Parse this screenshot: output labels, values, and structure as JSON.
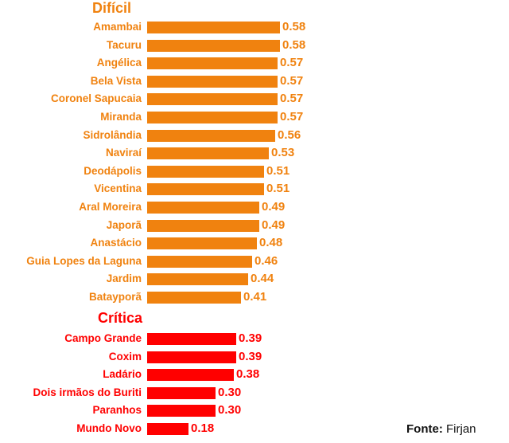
{
  "colors": {
    "dificil": "#f0820f",
    "critica": "#ff0000",
    "text": "#111111"
  },
  "source": {
    "label": "Fonte:",
    "value": "Firjan"
  },
  "chart_data": {
    "type": "bar",
    "orientation": "horizontal",
    "title": "",
    "groups": [
      {
        "name": "Difícil",
        "color": "#f0820f",
        "categories": [
          "Amambai",
          "Tacuru",
          "Angélica",
          "Bela Vista",
          "Coronel Sapucaia",
          "Miranda",
          "Sidrolândia",
          "Naviraí",
          "Deodápolis",
          "Vicentina",
          "Aral Moreira",
          "Japorã",
          "Anastácio",
          "Guia Lopes da Laguna",
          "Jardim",
          "Batayporã"
        ],
        "values": [
          0.58,
          0.58,
          0.57,
          0.57,
          0.57,
          0.57,
          0.56,
          0.53,
          0.51,
          0.51,
          0.49,
          0.49,
          0.48,
          0.46,
          0.44,
          0.41
        ],
        "labels": [
          "0.58",
          "0.58",
          "0.57",
          "0.57",
          "0.57",
          "0.57",
          "0.56",
          "0.53",
          "0.51",
          "0.51",
          "0.49",
          "0.49",
          "0.48",
          "0.46",
          "0.44",
          "0.41"
        ]
      },
      {
        "name": "Crítica",
        "color": "#ff0000",
        "categories": [
          "Campo Grande",
          "Coxim",
          "Ladário",
          "Dois irmãos do Buriti",
          "Paranhos",
          "Mundo Novo"
        ],
        "values": [
          0.39,
          0.39,
          0.38,
          0.3,
          0.3,
          0.18
        ],
        "labels": [
          "0.39",
          "0.39",
          "0.38",
          "0.30",
          "0.30",
          "0.18"
        ]
      }
    ],
    "xlabel": "",
    "ylabel": "",
    "grid": false,
    "legend": false,
    "source": "Fonte: Firjan"
  }
}
